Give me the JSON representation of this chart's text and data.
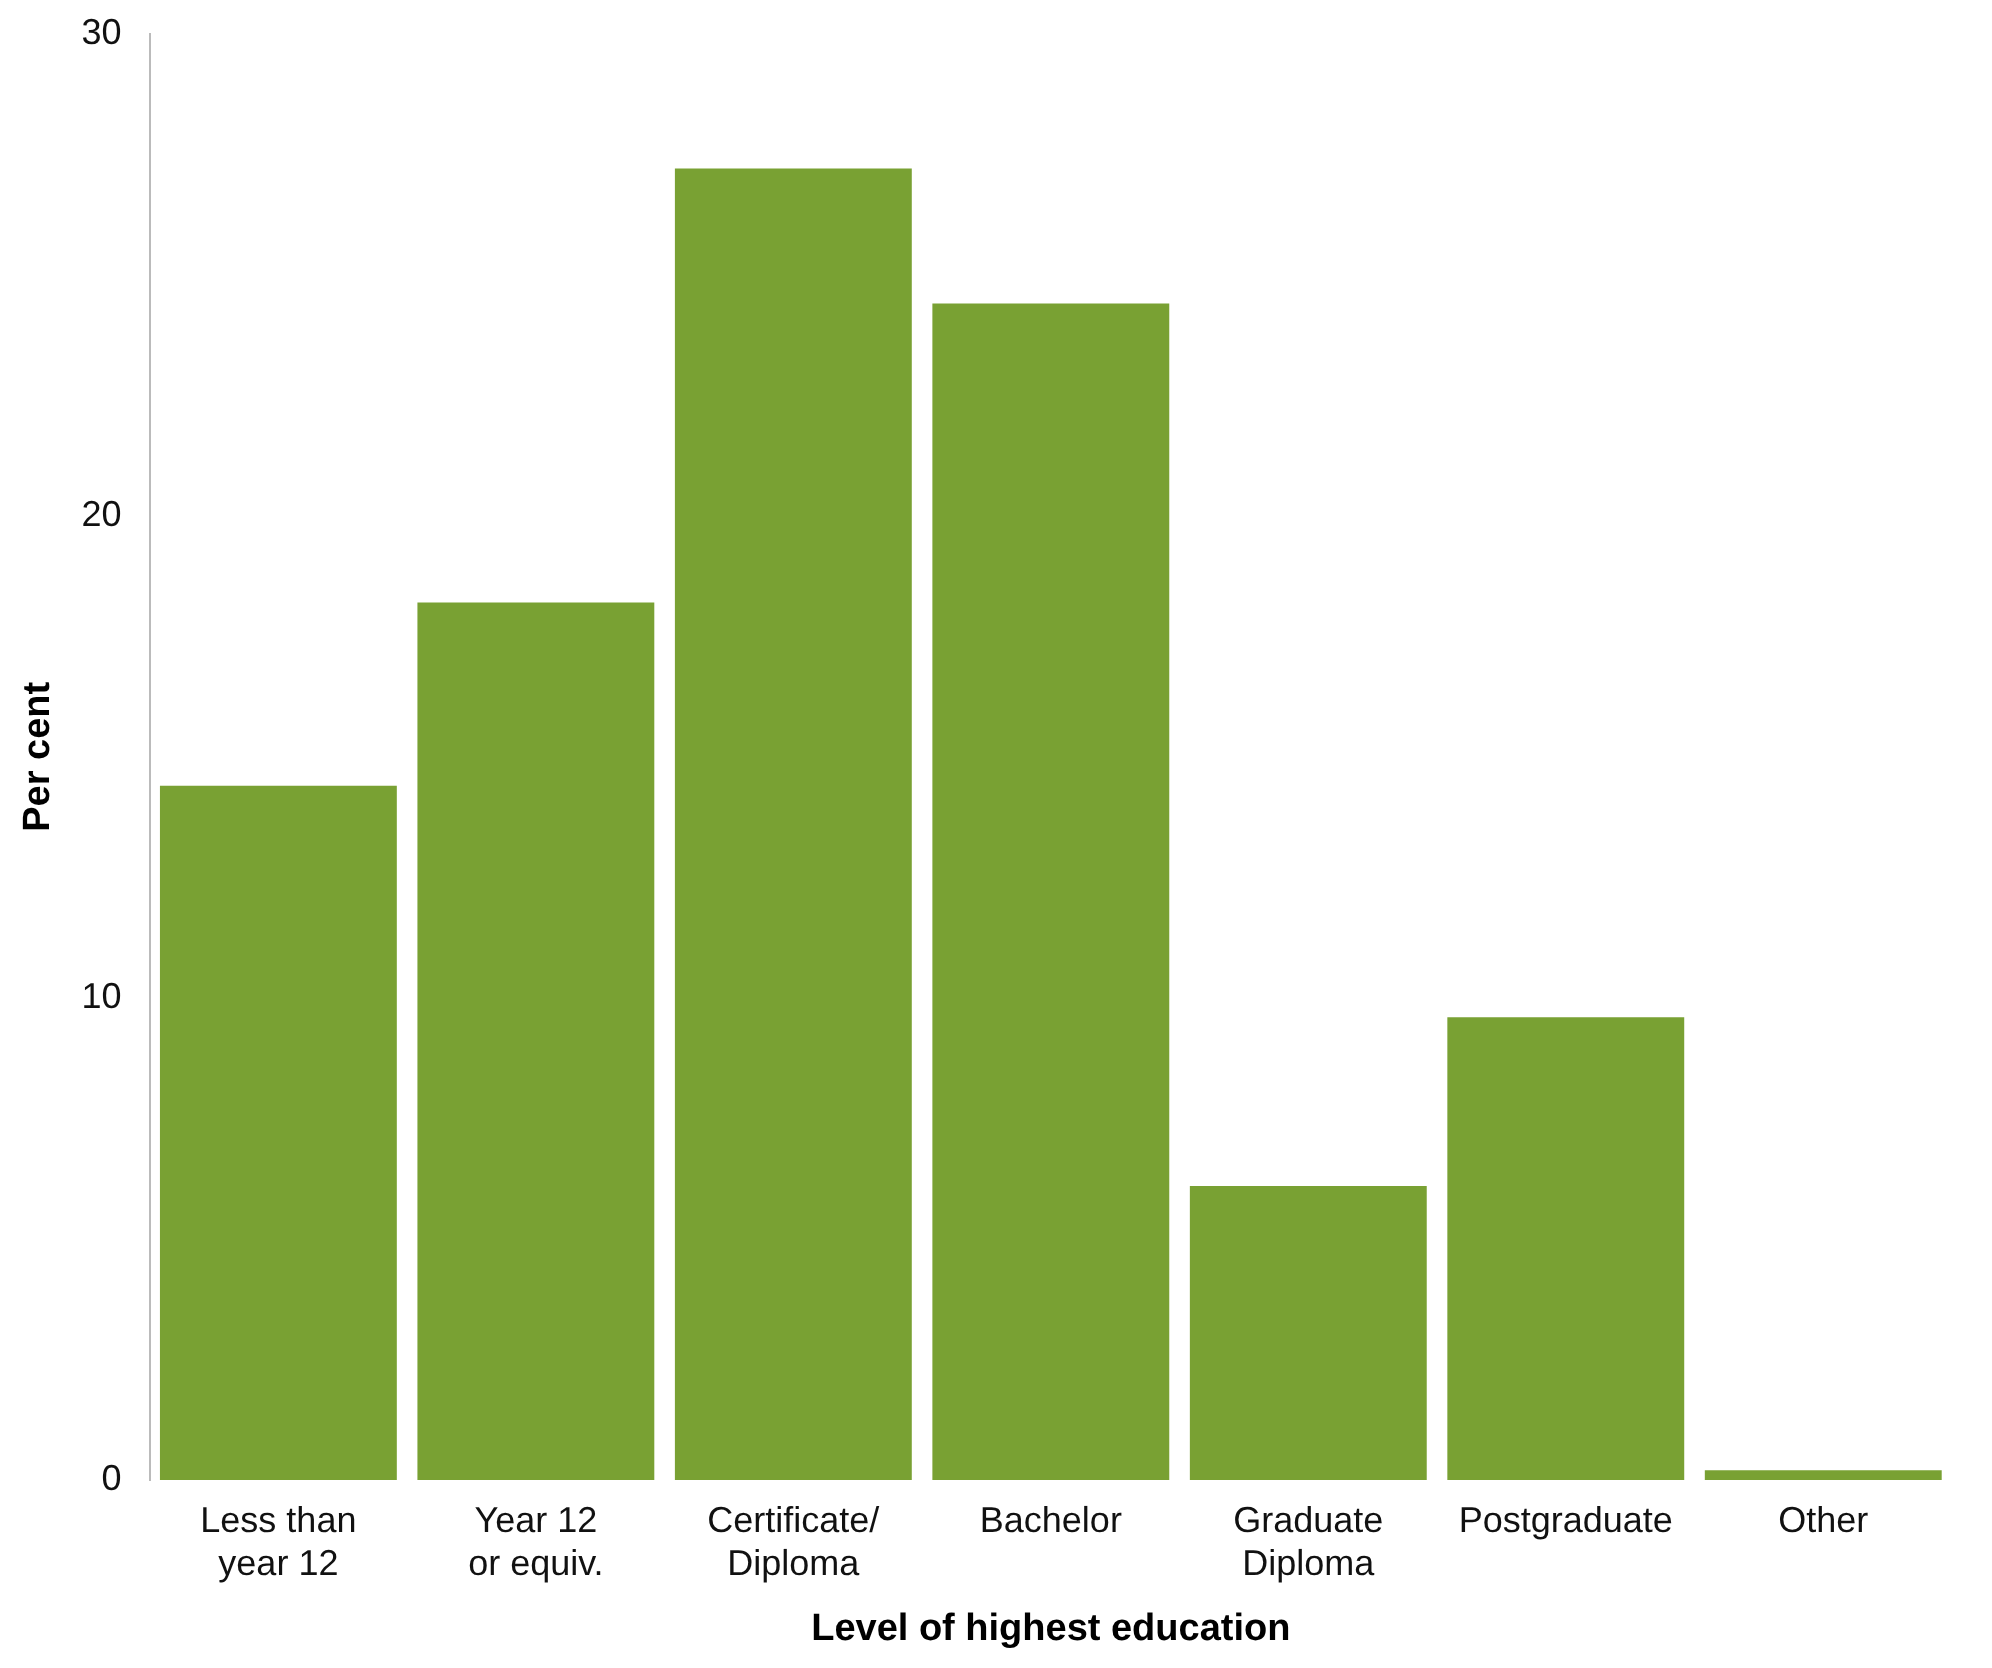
{
  "chart_data": {
    "type": "bar",
    "xlabel": "Level of highest education",
    "ylabel": "Per cent",
    "categories": [
      "Less than year 12",
      "Year 12 or equiv.",
      "Certificate/Diploma",
      "Bachelor",
      "Graduate Diploma",
      "Postgraduate",
      "Other"
    ],
    "values": [
      14.4,
      18.2,
      27.2,
      24.4,
      6.1,
      9.6,
      0.2
    ],
    "color": "#79a133",
    "ylim": [
      0,
      30
    ],
    "yticks": [
      0,
      10,
      20,
      30
    ],
    "grid": false,
    "legend": false
  }
}
